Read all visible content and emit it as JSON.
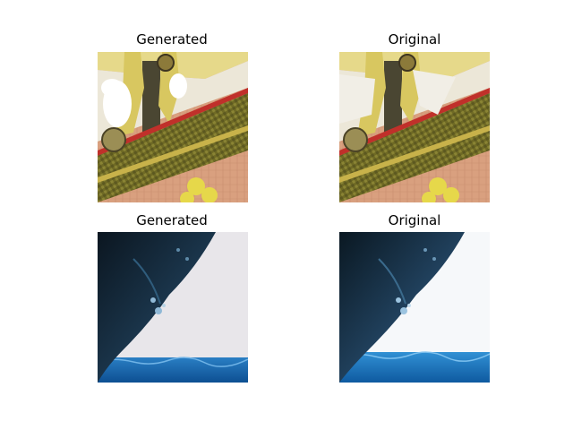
{
  "figure": {
    "panels": [
      {
        "title": "Generated",
        "image": "embroidered-garment-crop",
        "variant": "generated"
      },
      {
        "title": "Original",
        "image": "embroidered-garment-crop",
        "variant": "original"
      },
      {
        "title": "Generated",
        "image": "whale-breach-crop",
        "variant": "generated"
      },
      {
        "title": "Original",
        "image": "whale-breach-crop",
        "variant": "original"
      }
    ]
  }
}
